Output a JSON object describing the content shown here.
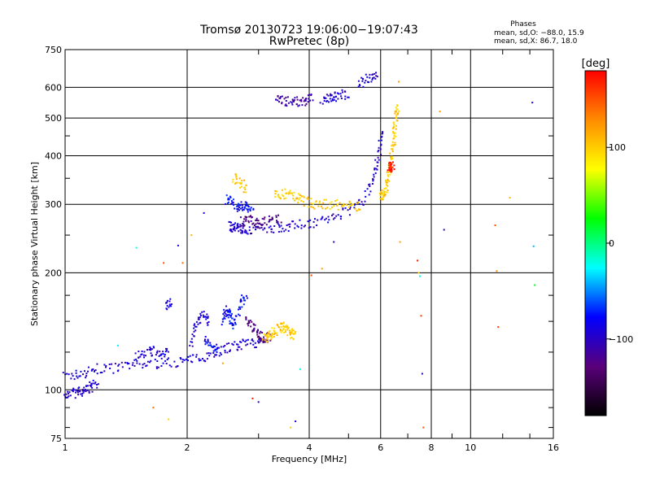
{
  "chart_data": {
    "type": "scatter",
    "title": "Tromsø 20130723 19:06:00−19:07:43",
    "subtitle": "RwPretec (8p)",
    "xlabel": "Frequency [MHz]",
    "ylabel": "Stationary phase Virtual Height [km]",
    "x_scale": "log",
    "y_scale": "log",
    "xlim": [
      1,
      16
    ],
    "ylim": [
      75,
      750
    ],
    "x_ticks": [
      1,
      2,
      4,
      6,
      8,
      10,
      16
    ],
    "x_tick_labels": [
      "1",
      "2",
      "4",
      "6",
      "8",
      "10",
      "16"
    ],
    "y_ticks": [
      75,
      100,
      200,
      300,
      400,
      500,
      600,
      750
    ],
    "y_tick_labels": [
      "75",
      "100",
      "200",
      "300",
      "400",
      "500",
      "600",
      "750"
    ],
    "grid": true,
    "stats": {
      "heading": "Phases",
      "line_o": "mean, sd,O: −88.0, 15.9",
      "line_x": "mean, sd,X:  86.7, 18.0"
    },
    "colorbar": {
      "label": "[deg]",
      "range": [
        -180,
        180
      ],
      "ticks": [
        100,
        0,
        -100
      ],
      "tick_labels": [
        "100",
        "0",
        "−100"
      ],
      "colors": [
        "#000000",
        "#5a007a",
        "#0000ff",
        "#00ffff",
        "#00ff00",
        "#ffff00",
        "#ff8c00",
        "#ff0000"
      ]
    },
    "series": [
      {
        "phase_deg": -95,
        "traces": [
          [
            [
              1.0,
              108
            ],
            [
              1.1,
              110
            ],
            [
              1.2,
              113
            ],
            [
              1.35,
              114
            ],
            [
              1.5,
              116
            ],
            [
              1.7,
              117
            ],
            [
              1.9,
              118
            ],
            [
              2.1,
              120
            ],
            [
              2.3,
              124
            ],
            [
              2.5,
              128
            ],
            [
              2.7,
              130
            ],
            [
              2.9,
              132
            ],
            [
              3.1,
              133
            ]
          ],
          [
            [
              1.0,
              98
            ],
            [
              1.05,
              98
            ],
            [
              1.1,
              99
            ],
            [
              1.15,
              101
            ],
            [
              1.2,
              104
            ]
          ],
          [
            [
              2.55,
              265
            ],
            [
              2.6,
              262
            ],
            [
              2.7,
              260
            ],
            [
              2.8,
              259
            ],
            [
              3.0,
              260
            ],
            [
              3.3,
              261
            ],
            [
              3.6,
              264
            ],
            [
              4.0,
              268
            ],
            [
              4.5,
              276
            ],
            [
              5.0,
              288
            ],
            [
              5.5,
              310
            ],
            [
              5.8,
              360
            ],
            [
              5.95,
              410
            ],
            [
              6.05,
              455
            ]
          ],
          [
            [
              4.3,
              560
            ],
            [
              4.5,
              565
            ],
            [
              4.7,
              570
            ],
            [
              5.0,
              580
            ]
          ],
          [
            [
              5.3,
              610
            ],
            [
              5.6,
              630
            ],
            [
              5.9,
              650
            ]
          ],
          [
            [
              1.5,
              123
            ],
            [
              1.6,
              125
            ],
            [
              1.7,
              126
            ],
            [
              1.8,
              124
            ]
          ],
          [
            [
              2.05,
              130
            ],
            [
              2.1,
              148
            ],
            [
              2.2,
              156
            ],
            [
              2.25,
              148
            ]
          ],
          [
            [
              1.78,
              165
            ],
            [
              1.82,
              170
            ]
          ]
        ]
      },
      {
        "phase_deg": -125,
        "traces": [
          [
            [
              2.7,
              270
            ],
            [
              2.85,
              275
            ],
            [
              3.0,
              268
            ],
            [
              3.2,
              272
            ],
            [
              3.4,
              275
            ]
          ],
          [
            [
              2.8,
              150
            ],
            [
              2.9,
              145
            ],
            [
              3.0,
              140
            ],
            [
              3.1,
              135
            ],
            [
              3.2,
              138
            ]
          ]
        ]
      },
      {
        "phase_deg": -80,
        "traces": [
          [
            [
              2.5,
              310
            ],
            [
              2.6,
              300
            ],
            [
              2.7,
              295
            ],
            [
              2.8,
              300
            ],
            [
              2.9,
              290
            ]
          ],
          [
            [
              2.45,
              150
            ],
            [
              2.5,
              160
            ],
            [
              2.55,
              155
            ],
            [
              2.6,
              145
            ],
            [
              2.7,
              165
            ],
            [
              2.8,
              175
            ]
          ],
          [
            [
              2.2,
              135
            ],
            [
              2.3,
              130
            ],
            [
              2.4,
              125
            ]
          ]
        ]
      },
      {
        "phase_deg": 100,
        "traces": [
          [
            [
              3.3,
              320
            ],
            [
              3.5,
              318
            ],
            [
              3.7,
              315
            ],
            [
              3.9,
              305
            ],
            [
              4.2,
              300
            ],
            [
              4.6,
              300
            ],
            [
              5.0,
              298
            ],
            [
              5.4,
              297
            ]
          ],
          [
            [
              6.0,
              315
            ],
            [
              6.1,
              318
            ],
            [
              6.2,
              330
            ],
            [
              6.3,
              360
            ],
            [
              6.35,
              390
            ],
            [
              6.45,
              430
            ],
            [
              6.5,
              470
            ],
            [
              6.55,
              510
            ],
            [
              6.6,
              540
            ]
          ],
          [
            [
              3.1,
              135
            ],
            [
              3.2,
              138
            ],
            [
              3.3,
              142
            ],
            [
              3.4,
              145
            ],
            [
              3.5,
              144
            ],
            [
              3.6,
              140
            ],
            [
              3.7,
              138
            ]
          ],
          [
            [
              2.6,
              350
            ],
            [
              2.7,
              340
            ],
            [
              2.8,
              330
            ]
          ]
        ]
      },
      {
        "phase_deg": 170,
        "traces": [
          [
            [
              6.3,
              370
            ],
            [
              6.35,
              375
            ],
            [
              6.45,
              380
            ]
          ]
        ]
      },
      {
        "phase_deg": -110,
        "traces": [
          [
            [
              3.3,
              555
            ],
            [
              3.5,
              552
            ],
            [
              3.7,
              550
            ],
            [
              3.9,
              555
            ],
            [
              4.1,
              560
            ]
          ]
        ]
      }
    ],
    "isolated_points": [
      [
        1.9,
        235,
        -100
      ],
      [
        2.05,
        250,
        110
      ],
      [
        2.2,
        285,
        -90
      ],
      [
        1.35,
        130,
        -30
      ],
      [
        1.5,
        232,
        -20
      ],
      [
        1.75,
        212,
        150
      ],
      [
        1.95,
        212,
        140
      ],
      [
        4.3,
        205,
        120
      ],
      [
        4.6,
        240,
        -100
      ],
      [
        6.65,
        620,
        120
      ],
      [
        6.7,
        240,
        120
      ],
      [
        7.4,
        215,
        170
      ],
      [
        7.45,
        200,
        100
      ],
      [
        7.5,
        196,
        -20
      ],
      [
        7.55,
        155,
        160
      ],
      [
        7.6,
        110,
        -105
      ],
      [
        7.65,
        80,
        150
      ],
      [
        8.4,
        520,
        120
      ],
      [
        8.6,
        258,
        -100
      ],
      [
        11.5,
        265,
        150
      ],
      [
        11.6,
        202,
        130
      ],
      [
        11.7,
        145,
        160
      ],
      [
        12.5,
        312,
        110
      ],
      [
        14.2,
        548,
        -100
      ],
      [
        14.3,
        234,
        -40
      ],
      [
        14.4,
        186,
        20
      ],
      [
        1.65,
        90,
        140
      ],
      [
        1.8,
        84,
        100
      ],
      [
        3.6,
        80,
        100
      ],
      [
        3.7,
        83,
        -100
      ],
      [
        2.9,
        95,
        170
      ],
      [
        3.0,
        93,
        -100
      ],
      [
        2.45,
        117,
        120
      ],
      [
        3.8,
        113,
        -20
      ],
      [
        4.05,
        197,
        150
      ]
    ]
  }
}
